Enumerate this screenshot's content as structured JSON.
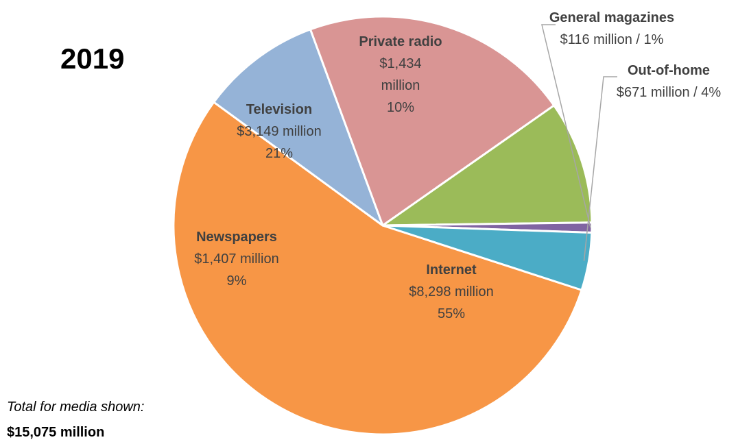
{
  "chart_data": {
    "type": "pie",
    "title": "2019",
    "total_label": "Total for media shown:",
    "total_value": "$15,075 million",
    "slices": [
      {
        "name": "Internet",
        "value": 8298,
        "lines": [
          "$8,298 million",
          "55%"
        ],
        "color": "#F79646"
      },
      {
        "name": "Newspapers",
        "value": 1407,
        "lines": [
          "$1,407 million",
          "9%"
        ],
        "color": "#95B3D7"
      },
      {
        "name": "Television",
        "value": 3149,
        "lines": [
          "$3,149 million",
          "21%"
        ],
        "color": "#D99594"
      },
      {
        "name": "Private radio",
        "value": 1434,
        "lines": [
          "$1,434",
          "million",
          "10%"
        ],
        "color": "#9BBB59"
      },
      {
        "name": "General magazines",
        "value": 116,
        "lines": [
          "$116 million / 1%"
        ],
        "color": "#8064A2"
      },
      {
        "name": "Out-of-home",
        "value": 671,
        "lines": [
          "$671 million / 4%"
        ],
        "color": "#4BACC6"
      }
    ]
  }
}
